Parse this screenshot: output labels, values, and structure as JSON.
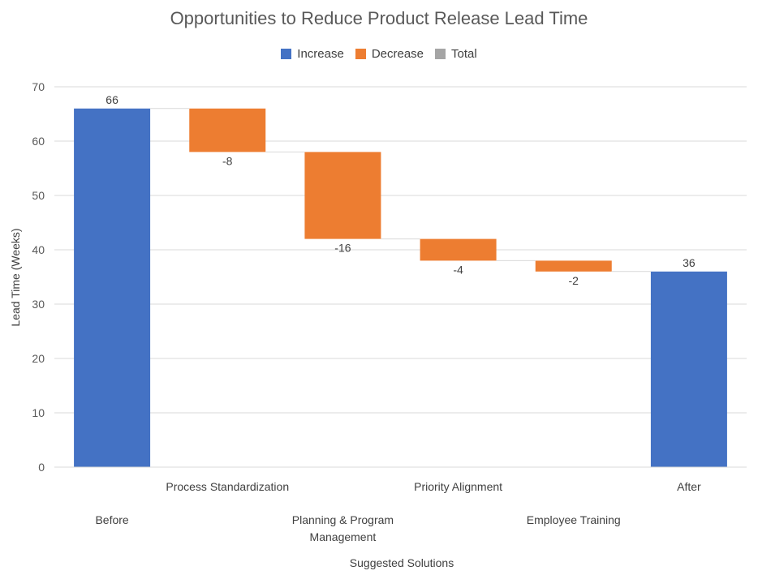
{
  "chart_data": {
    "type": "waterfall",
    "title": "Opportunities to Reduce Product Release Lead Time",
    "xlabel": "Suggested Solutions",
    "ylabel": "Lead Time (Weeks)",
    "ylim": [
      0,
      70
    ],
    "yticks": [
      0,
      10,
      20,
      30,
      40,
      50,
      60,
      70
    ],
    "grid": true,
    "legend_position": "top",
    "legend": [
      {
        "name": "Increase",
        "color": "#4472C4"
      },
      {
        "name": "Decrease",
        "color": "#ED7D31"
      },
      {
        "name": "Total",
        "color": "#A5A5A5"
      }
    ],
    "categories": [
      "Before",
      "Process Standardization",
      "Planning & Program Management",
      "Priority Alignment",
      "Employee Training",
      "After"
    ],
    "category_lines": [
      [
        "Before"
      ],
      [
        "Process Standardization"
      ],
      [
        "Planning & Program",
        "Management"
      ],
      [
        "Priority Alignment"
      ],
      [
        "Employee Training"
      ],
      [
        "After"
      ]
    ],
    "values": [
      66,
      -8,
      -16,
      -4,
      -2,
      36
    ],
    "data_labels": [
      "66",
      "-8",
      "-16",
      "-4",
      "-2",
      "36"
    ],
    "kinds": [
      "increase",
      "decrease",
      "decrease",
      "decrease",
      "decrease",
      "increase"
    ]
  }
}
